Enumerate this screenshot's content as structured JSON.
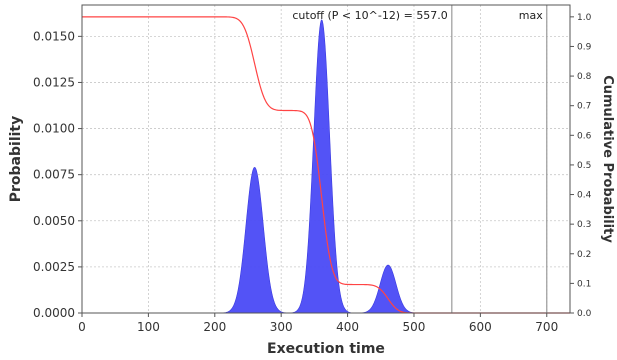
{
  "chart_data": {
    "type": "area",
    "xlabel": "Execution time",
    "ylabel_left": "Probability",
    "ylabel_right": "Cumulative Probability",
    "xlim": [
      0,
      735
    ],
    "ylim_left": [
      0,
      0.0167
    ],
    "ylim_right": [
      0,
      1.04
    ],
    "x_ticks": [
      0,
      100,
      200,
      300,
      400,
      500,
      600,
      700
    ],
    "y_left_ticks": [
      0.0,
      0.0025,
      0.005,
      0.0075,
      0.01,
      0.0125,
      0.015
    ],
    "y_left_tick_labels": [
      "0.0000",
      "0.0025",
      "0.0050",
      "0.0075",
      "0.0100",
      "0.0125",
      "0.0150"
    ],
    "y_right_ticks": [
      0.0,
      0.1,
      0.2,
      0.3,
      0.4,
      0.5,
      0.6,
      0.7,
      0.8,
      0.9,
      1.0
    ],
    "y_right_tick_labels": [
      "0.0",
      "0.1",
      "0.2",
      "0.3",
      "0.4",
      "0.5",
      "0.6",
      "0.7",
      "0.8",
      "0.9",
      "1.0"
    ],
    "grid": true,
    "series": [
      {
        "kind": "probability_distribution",
        "color": "#4a4af5",
        "components": [
          {
            "center": 260,
            "peak": 0.0079,
            "sigma": 13
          },
          {
            "center": 361,
            "peak": 0.0159,
            "sigma": 12
          },
          {
            "center": 461,
            "peak": 0.0026,
            "sigma": 12
          }
        ]
      },
      {
        "kind": "exceedance_curve",
        "color": "#ff4444",
        "axis": "right"
      }
    ],
    "vertical_lines": [
      {
        "x": 557.0,
        "label": "cutoff (P < 10^-12) = 557.0"
      },
      {
        "x": 700,
        "label": "max"
      }
    ]
  }
}
